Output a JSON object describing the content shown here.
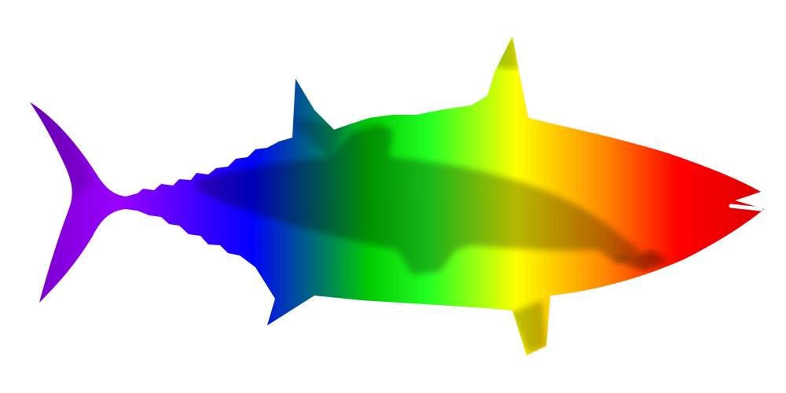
{
  "illustration": {
    "subject": "fish-silhouette",
    "background": "#ffffff",
    "gradient_colors": [
      "#7a00cc",
      "#9900ff",
      "#0000ff",
      "#00cc00",
      "#22ff22",
      "#ffff00",
      "#ff8800",
      "#ff0000",
      "#dd0000"
    ],
    "shadow_color": "#000000"
  }
}
